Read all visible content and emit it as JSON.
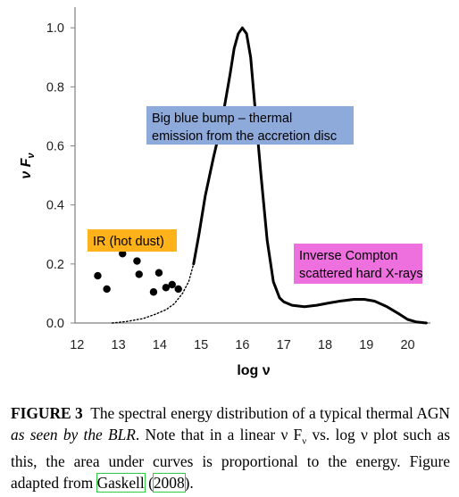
{
  "chart_data": {
    "type": "line",
    "xlabel": "log ν",
    "ylabel": "ν F_ν",
    "xlim": [
      12,
      20.5
    ],
    "ylim": [
      0,
      1.05
    ],
    "x_ticks": [
      "12",
      "13",
      "14",
      "15",
      "16",
      "17",
      "18",
      "19",
      "20"
    ],
    "y_ticks": [
      "0.0",
      "0.2",
      "0.4",
      "0.6",
      "0.8",
      "1.0"
    ],
    "grid": false,
    "series": [
      {
        "style": "solid",
        "x": [
          14.82,
          14.95,
          15.1,
          15.3,
          15.5,
          15.7,
          15.8,
          15.9,
          16.0,
          16.1,
          16.2,
          16.3,
          16.45,
          16.6,
          16.75,
          16.9,
          17.0,
          17.2,
          17.5,
          17.8,
          18.1,
          18.4,
          18.7,
          18.95,
          19.2,
          19.5,
          19.8,
          20.0,
          20.2,
          20.45
        ],
        "y": [
          0.2,
          0.3,
          0.43,
          0.56,
          0.68,
          0.84,
          0.93,
          0.98,
          1.0,
          0.98,
          0.9,
          0.74,
          0.5,
          0.28,
          0.14,
          0.085,
          0.072,
          0.06,
          0.055,
          0.06,
          0.068,
          0.075,
          0.08,
          0.08,
          0.074,
          0.055,
          0.03,
          0.012,
          0.004,
          0.0
        ]
      },
      {
        "style": "dotted",
        "x": [
          12.85,
          13.2,
          13.6,
          13.9,
          14.15,
          14.35,
          14.55,
          14.7,
          14.82
        ],
        "y": [
          0.0,
          0.005,
          0.015,
          0.03,
          0.045,
          0.065,
          0.1,
          0.14,
          0.2
        ]
      },
      {
        "style": "points",
        "x": [
          12.5,
          12.72,
          13.1,
          13.45,
          13.5,
          13.85,
          13.98,
          14.15,
          14.3,
          14.45
        ],
        "y": [
          0.16,
          0.115,
          0.235,
          0.21,
          0.165,
          0.105,
          0.17,
          0.12,
          0.13,
          0.115
        ]
      }
    ],
    "annotations": [
      {
        "text": [
          "Big blue bump – thermal",
          "emission from the accretion disc"
        ],
        "color": "#8eaadb"
      },
      {
        "text": [
          "IR (hot dust)"
        ],
        "color": "#ffb21a"
      },
      {
        "text": [
          "Inverse Compton",
          "scattered hard X-rays"
        ],
        "color": "#ee6fde"
      }
    ]
  },
  "caption": {
    "lead": "FIGURE 3",
    "text_1": "The spectral energy distribution of a typical thermal AGN",
    "emph": "as seen by the BLR",
    "text_2": ". Note that in a linear ν F",
    "sub": "ν",
    "text_3": " vs. log ν plot such as this, the area under curves is proportional to the energy. Figure adapted from",
    "cite_author": "Gaskell",
    "paren_open": " (",
    "cite_year": "2008",
    "paren_close": ")."
  }
}
